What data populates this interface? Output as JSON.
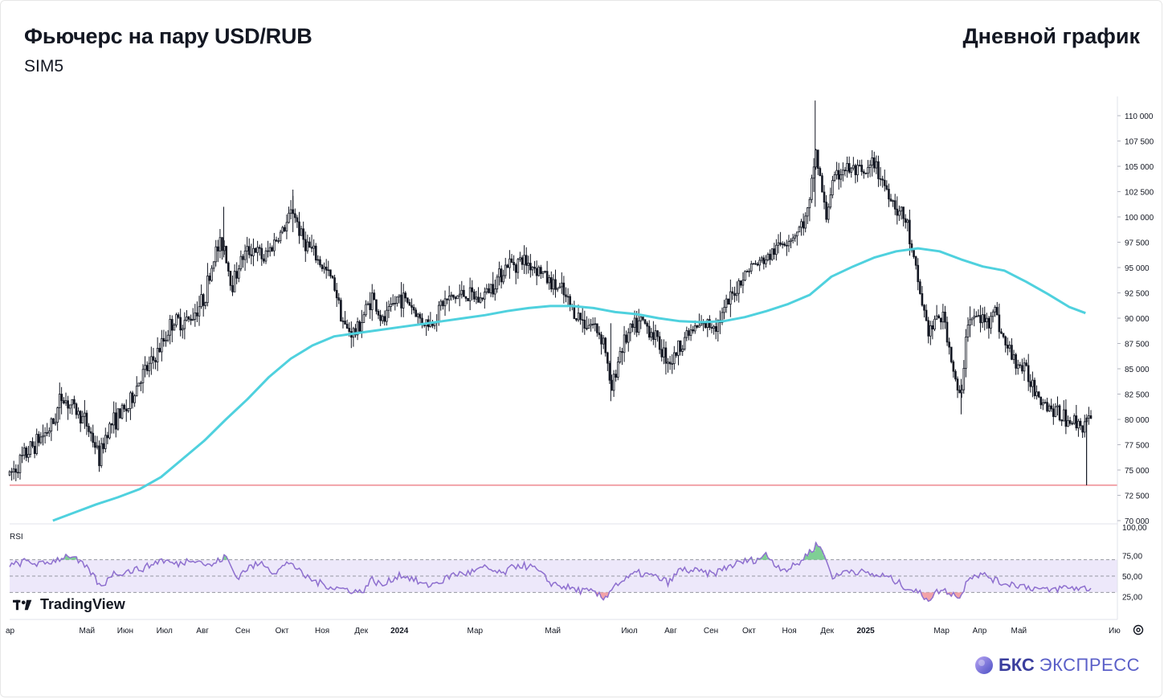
{
  "header": {
    "title": "Фьючерс на пару USD/RUB",
    "subtitle": "SIM5",
    "right_title": "Дневной график"
  },
  "branding": {
    "tradingview": "TradingView",
    "bks_bold": "БКС",
    "bks_light": "ЭКСПРЕСС"
  },
  "colors": {
    "candle": "#131722",
    "ma": "#4fd1de",
    "support": "#f2a3a8",
    "rsi_line": "#8e6fcf",
    "rsi_band": "#ede8fa",
    "rsi_overbought": "#7fcf95",
    "rsi_oversold": "#f2a3a8"
  },
  "chart_data": [
    {
      "type": "candlestick",
      "y_ticks": [
        "110 000",
        "107 500",
        "105 000",
        "102 500",
        "100 000",
        "97 500",
        "95 000",
        "92 500",
        "90 000",
        "87 500",
        "85 000",
        "82 500",
        "80 000",
        "77 500",
        "75 000",
        "72 500",
        "70 000"
      ],
      "ylim": [
        70000,
        110000
      ],
      "x_ticks": [
        {
          "label": "ар",
          "t": 0
        },
        {
          "label": "Май",
          "t": 0.0715
        },
        {
          "label": "Июн",
          "t": 0.1069
        },
        {
          "label": "Июл",
          "t": 0.1432
        },
        {
          "label": "Авг",
          "t": 0.1784
        },
        {
          "label": "Сен",
          "t": 0.2155
        },
        {
          "label": "Окт",
          "t": 0.2519
        },
        {
          "label": "Ноя",
          "t": 0.2891
        },
        {
          "label": "Дек",
          "t": 0.3252
        },
        {
          "label": "2024",
          "t": 0.3605
        },
        {
          "label": "Мар",
          "t": 0.4304
        },
        {
          "label": "Май",
          "t": 0.5024
        },
        {
          "label": "Июл",
          "t": 0.5732
        },
        {
          "label": "Авг",
          "t": 0.6114
        },
        {
          "label": "Сен",
          "t": 0.6486
        },
        {
          "label": "Окт",
          "t": 0.6838
        },
        {
          "label": "Ноя",
          "t": 0.7211
        },
        {
          "label": "Дек",
          "t": 0.7561
        },
        {
          "label": "2025",
          "t": 0.7917
        },
        {
          "label": "Мар",
          "t": 0.8619
        },
        {
          "label": "Апр",
          "t": 0.8971
        },
        {
          "label": "Май",
          "t": 0.9334
        },
        {
          "label": "Ию",
          "t": 0.9996
        }
      ],
      "price_anchors": [
        [
          0,
          74500
        ],
        [
          0.02,
          77200
        ],
        [
          0.04,
          79500
        ],
        [
          0.048,
          82300
        ],
        [
          0.06,
          81000
        ],
        [
          0.07,
          79800
        ],
        [
          0.078,
          77800
        ],
        [
          0.083,
          76000
        ],
        [
          0.09,
          79000
        ],
        [
          0.1,
          80300
        ],
        [
          0.11,
          81200
        ],
        [
          0.12,
          84000
        ],
        [
          0.13,
          85300
        ],
        [
          0.14,
          87200
        ],
        [
          0.15,
          89600
        ],
        [
          0.165,
          89700
        ],
        [
          0.18,
          92000
        ],
        [
          0.19,
          96500
        ],
        [
          0.198,
          97500
        ],
        [
          0.205,
          93200
        ],
        [
          0.215,
          96000
        ],
        [
          0.225,
          97000
        ],
        [
          0.235,
          95800
        ],
        [
          0.245,
          97600
        ],
        [
          0.255,
          99000
        ],
        [
          0.262,
          100800
        ],
        [
          0.27,
          98000
        ],
        [
          0.28,
          96500
        ],
        [
          0.29,
          95000
        ],
        [
          0.3,
          93500
        ],
        [
          0.31,
          89000
        ],
        [
          0.32,
          88500
        ],
        [
          0.335,
          92200
        ],
        [
          0.345,
          89500
        ],
        [
          0.36,
          92200
        ],
        [
          0.37,
          91500
        ],
        [
          0.38,
          89800
        ],
        [
          0.39,
          89400
        ],
        [
          0.4,
          91500
        ],
        [
          0.41,
          92000
        ],
        [
          0.42,
          92400
        ],
        [
          0.435,
          91800
        ],
        [
          0.45,
          93800
        ],
        [
          0.46,
          95300
        ],
        [
          0.475,
          95700
        ],
        [
          0.49,
          94800
        ],
        [
          0.5,
          93500
        ],
        [
          0.51,
          92700
        ],
        [
          0.52,
          90900
        ],
        [
          0.53,
          89700
        ],
        [
          0.54,
          89300
        ],
        [
          0.55,
          87800
        ],
        [
          0.556,
          82500
        ],
        [
          0.565,
          87000
        ],
        [
          0.575,
          88800
        ],
        [
          0.585,
          89600
        ],
        [
          0.595,
          88600
        ],
        [
          0.605,
          86500
        ],
        [
          0.612,
          85700
        ],
        [
          0.625,
          88300
        ],
        [
          0.635,
          89000
        ],
        [
          0.645,
          89300
        ],
        [
          0.655,
          89600
        ],
        [
          0.665,
          91500
        ],
        [
          0.675,
          93600
        ],
        [
          0.685,
          95100
        ],
        [
          0.695,
          95500
        ],
        [
          0.705,
          96300
        ],
        [
          0.715,
          97600
        ],
        [
          0.725,
          98200
        ],
        [
          0.735,
          99500
        ],
        [
          0.74,
          101000
        ],
        [
          0.745,
          106800
        ],
        [
          0.75,
          103500
        ],
        [
          0.755,
          99800
        ],
        [
          0.76,
          103000
        ],
        [
          0.77,
          104800
        ],
        [
          0.78,
          104600
        ],
        [
          0.79,
          104000
        ],
        [
          0.8,
          105300
        ],
        [
          0.81,
          103000
        ],
        [
          0.82,
          101000
        ],
        [
          0.83,
          99300
        ],
        [
          0.835,
          96000
        ],
        [
          0.84,
          93500
        ],
        [
          0.85,
          88500
        ],
        [
          0.86,
          90300
        ],
        [
          0.865,
          89600
        ],
        [
          0.87,
          86500
        ],
        [
          0.875,
          83500
        ],
        [
          0.88,
          81500
        ],
        [
          0.885,
          89600
        ],
        [
          0.895,
          90100
        ],
        [
          0.905,
          89600
        ],
        [
          0.91,
          91300
        ],
        [
          0.92,
          87500
        ],
        [
          0.93,
          85800
        ],
        [
          0.94,
          84600
        ],
        [
          0.95,
          82800
        ],
        [
          0.96,
          81400
        ],
        [
          0.97,
          80500
        ],
        [
          0.98,
          80000
        ],
        [
          0.99,
          79500
        ],
        [
          0.995,
          79800
        ]
      ],
      "ma_series": [
        [
          0.04,
          70000
        ],
        [
          0.06,
          70800
        ],
        [
          0.08,
          71600
        ],
        [
          0.1,
          72300
        ],
        [
          0.12,
          73100
        ],
        [
          0.14,
          74300
        ],
        [
          0.16,
          76100
        ],
        [
          0.18,
          77900
        ],
        [
          0.2,
          80000
        ],
        [
          0.22,
          82000
        ],
        [
          0.24,
          84200
        ],
        [
          0.26,
          86000
        ],
        [
          0.28,
          87300
        ],
        [
          0.3,
          88200
        ],
        [
          0.32,
          88500
        ],
        [
          0.34,
          88800
        ],
        [
          0.36,
          89100
        ],
        [
          0.38,
          89400
        ],
        [
          0.4,
          89700
        ],
        [
          0.42,
          90000
        ],
        [
          0.44,
          90300
        ],
        [
          0.46,
          90700
        ],
        [
          0.48,
          91000
        ],
        [
          0.5,
          91200
        ],
        [
          0.52,
          91200
        ],
        [
          0.54,
          91000
        ],
        [
          0.56,
          90600
        ],
        [
          0.58,
          90400
        ],
        [
          0.6,
          90000
        ],
        [
          0.62,
          89700
        ],
        [
          0.64,
          89600
        ],
        [
          0.66,
          89700
        ],
        [
          0.68,
          90100
        ],
        [
          0.7,
          90700
        ],
        [
          0.72,
          91400
        ],
        [
          0.74,
          92300
        ],
        [
          0.76,
          94100
        ],
        [
          0.78,
          95100
        ],
        [
          0.8,
          96000
        ],
        [
          0.82,
          96600
        ],
        [
          0.84,
          96900
        ],
        [
          0.86,
          96600
        ],
        [
          0.88,
          95800
        ],
        [
          0.9,
          95100
        ],
        [
          0.92,
          94700
        ],
        [
          0.94,
          93600
        ],
        [
          0.96,
          92400
        ],
        [
          0.98,
          91100
        ],
        [
          0.995,
          90500
        ]
      ],
      "support_level": 73500,
      "last_candle_low": 73500,
      "support_label": "",
      "pane_label": ""
    },
    {
      "type": "line",
      "pane_label": "RSI",
      "y_ticks": [
        "100,00",
        "75,00",
        "50,00",
        "25,00"
      ],
      "ylim": [
        0,
        100
      ],
      "band": [
        30,
        70
      ],
      "midline": 50,
      "rsi_anchors": [
        [
          0,
          62
        ],
        [
          0.015,
          68
        ],
        [
          0.03,
          64
        ],
        [
          0.045,
          71
        ],
        [
          0.055,
          76
        ],
        [
          0.065,
          66
        ],
        [
          0.075,
          55
        ],
        [
          0.085,
          35
        ],
        [
          0.093,
          52
        ],
        [
          0.11,
          56
        ],
        [
          0.125,
          60
        ],
        [
          0.14,
          70
        ],
        [
          0.155,
          64
        ],
        [
          0.17,
          72
        ],
        [
          0.185,
          62
        ],
        [
          0.2,
          74
        ],
        [
          0.21,
          48
        ],
        [
          0.22,
          60
        ],
        [
          0.235,
          66
        ],
        [
          0.245,
          54
        ],
        [
          0.26,
          68
        ],
        [
          0.27,
          52
        ],
        [
          0.285,
          42
        ],
        [
          0.3,
          36
        ],
        [
          0.315,
          33
        ],
        [
          0.325,
          30
        ],
        [
          0.335,
          46
        ],
        [
          0.345,
          38
        ],
        [
          0.36,
          52
        ],
        [
          0.37,
          48
        ],
        [
          0.385,
          38
        ],
        [
          0.4,
          44
        ],
        [
          0.41,
          52
        ],
        [
          0.425,
          54
        ],
        [
          0.44,
          60
        ],
        [
          0.455,
          52
        ],
        [
          0.47,
          64
        ],
        [
          0.485,
          60
        ],
        [
          0.5,
          42
        ],
        [
          0.51,
          38
        ],
        [
          0.525,
          33
        ],
        [
          0.54,
          30
        ],
        [
          0.55,
          22
        ],
        [
          0.558,
          38
        ],
        [
          0.57,
          46
        ],
        [
          0.58,
          54
        ],
        [
          0.595,
          50
        ],
        [
          0.61,
          42
        ],
        [
          0.62,
          58
        ],
        [
          0.635,
          56
        ],
        [
          0.65,
          52
        ],
        [
          0.665,
          62
        ],
        [
          0.68,
          68
        ],
        [
          0.69,
          70
        ],
        [
          0.7,
          76
        ],
        [
          0.71,
          62
        ],
        [
          0.72,
          58
        ],
        [
          0.73,
          66
        ],
        [
          0.74,
          80
        ],
        [
          0.748,
          90
        ],
        [
          0.755,
          70
        ],
        [
          0.762,
          47
        ],
        [
          0.775,
          58
        ],
        [
          0.79,
          54
        ],
        [
          0.8,
          51
        ],
        [
          0.81,
          50
        ],
        [
          0.82,
          43
        ],
        [
          0.83,
          36
        ],
        [
          0.84,
          30
        ],
        [
          0.85,
          22
        ],
        [
          0.86,
          33
        ],
        [
          0.87,
          30
        ],
        [
          0.88,
          23
        ],
        [
          0.885,
          48
        ],
        [
          0.895,
          52
        ],
        [
          0.905,
          50
        ],
        [
          0.915,
          42
        ],
        [
          0.93,
          40
        ],
        [
          0.945,
          36
        ],
        [
          0.96,
          32
        ],
        [
          0.975,
          36
        ],
        [
          0.995,
          35
        ]
      ]
    }
  ]
}
